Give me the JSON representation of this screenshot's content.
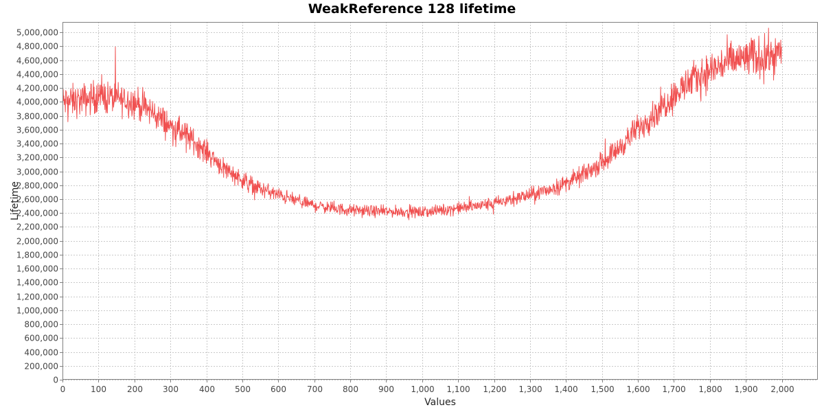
{
  "chart_data": {
    "type": "line",
    "title": "WeakReference 128 lifetime",
    "xlabel": "Values",
    "ylabel": "Lifetime",
    "xlim": [
      0,
      2100
    ],
    "ylim": [
      0,
      5150000
    ],
    "x_ticks": [
      0,
      100,
      200,
      300,
      400,
      500,
      600,
      700,
      800,
      900,
      1000,
      1100,
      1200,
      1300,
      1400,
      1500,
      1600,
      1700,
      1800,
      1900,
      2000
    ],
    "x_tick_labels": [
      "0",
      "100",
      "200",
      "300",
      "400",
      "500",
      "600",
      "700",
      "800",
      "900",
      "1,000",
      "1,100",
      "1,200",
      "1,300",
      "1,400",
      "1,500",
      "1,600",
      "1,700",
      "1,800",
      "1,900",
      "2,000"
    ],
    "y_ticks": [
      0,
      200000,
      400000,
      600000,
      800000,
      1000000,
      1200000,
      1400000,
      1600000,
      1800000,
      2000000,
      2200000,
      2400000,
      2600000,
      2800000,
      3000000,
      3200000,
      3400000,
      3600000,
      3800000,
      4000000,
      4200000,
      4400000,
      4600000,
      4800000,
      5000000
    ],
    "y_tick_labels": [
      "0",
      "200,000",
      "400,000",
      "600,000",
      "800,000",
      "1,000,000",
      "1,200,000",
      "1,400,000",
      "1,600,000",
      "1,800,000",
      "2,000,000",
      "2,200,000",
      "2,400,000",
      "2,600,000",
      "2,800,000",
      "3,000,000",
      "3,200,000",
      "3,400,000",
      "3,600,000",
      "3,800,000",
      "4,000,000",
      "4,200,000",
      "4,400,000",
      "4,600,000",
      "4,800,000",
      "5,000,000"
    ],
    "grid": true,
    "series": [
      {
        "color": "#f05050",
        "x": [
          0,
          50,
          100,
          150,
          200,
          250,
          300,
          350,
          400,
          450,
          500,
          550,
          600,
          650,
          700,
          750,
          800,
          850,
          900,
          950,
          1000,
          1050,
          1100,
          1150,
          1200,
          1250,
          1300,
          1350,
          1400,
          1450,
          1500,
          1550,
          1600,
          1650,
          1700,
          1750,
          1800,
          1850,
          1900,
          1950,
          2000
        ],
        "values": [
          4000000,
          4020000,
          4080000,
          4050000,
          4000000,
          3850000,
          3650000,
          3500000,
          3280000,
          3050000,
          2880000,
          2750000,
          2660000,
          2580000,
          2510000,
          2470000,
          2440000,
          2430000,
          2420000,
          2420000,
          2410000,
          2440000,
          2470000,
          2500000,
          2540000,
          2600000,
          2660000,
          2730000,
          2830000,
          2960000,
          3130000,
          3350000,
          3620000,
          3850000,
          4100000,
          4300000,
          4450000,
          4570000,
          4630000,
          4650000,
          4700000
        ],
        "noise_amplitude": 120000,
        "sample_count": 2000
      }
    ]
  }
}
